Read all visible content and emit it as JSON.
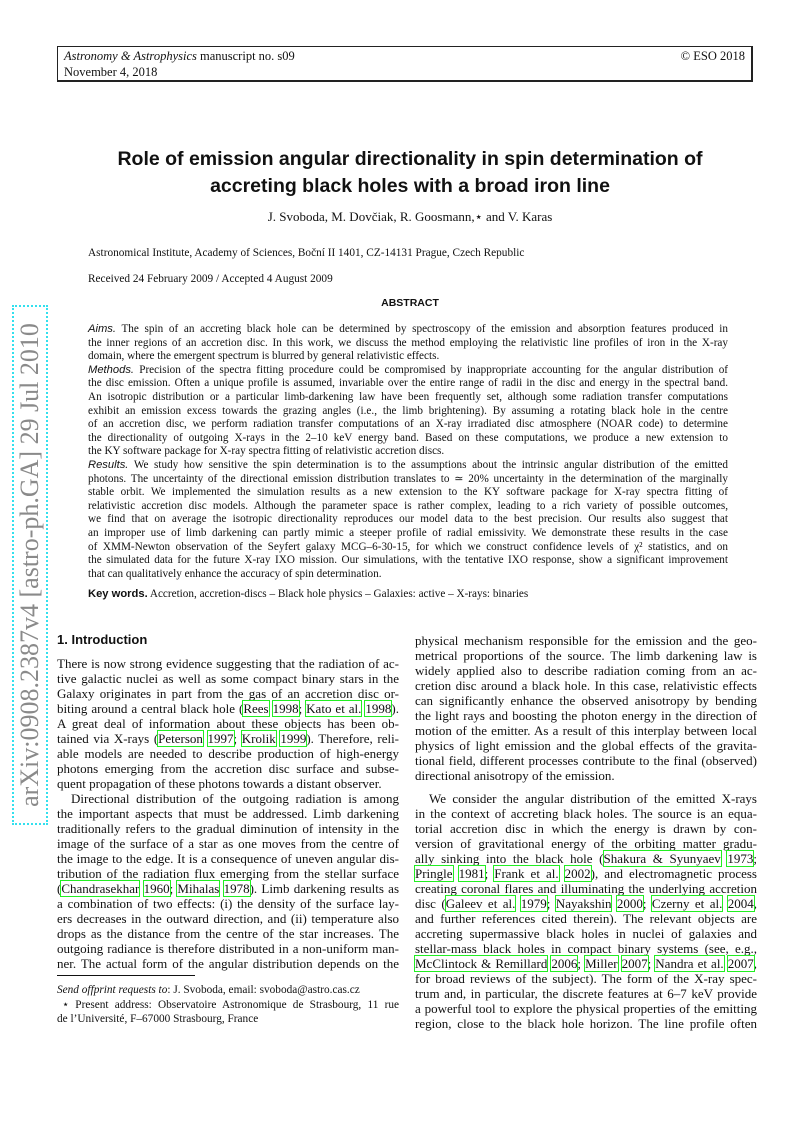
{
  "header": {
    "journal_italic": "Astronomy & Astrophysics",
    "manuscript": " manuscript no. s09",
    "copyright": "© ESO 2018",
    "date": "November 4, 2018"
  },
  "arxiv_stamp": "arXiv:0908.2387v4  [astro-ph.GA]  29 Jul 2010",
  "title_lines": [
    "Role of emission angular directionality in spin determination of",
    "accreting black holes with a broad iron line"
  ],
  "authors": "J. Svoboda, M. Dovčiak, R. Goosmann,⋆ and V. Karas",
  "affiliation": "Astronomical Institute, Academy of Sciences, Boční II 1401, CZ-14131 Prague, Czech Republic",
  "received": "Received 24 February 2009 / Accepted 4 August 2009",
  "abstract": {
    "heading": "ABSTRACT",
    "sections": [
      {
        "label": "Aims.",
        "lines": [
          "The spin of an accreting black hole can be determined by spectroscopy of the emission and absorption features produced in",
          "the inner regions of an accretion disc. In this work, we discuss the method employing the relativistic line profiles of iron in the X-ray",
          "domain, where the emergent spectrum is blurred by general relativistic effects."
        ]
      },
      {
        "label": "Methods.",
        "lines": [
          "Precision of the spectra fitting procedure could be compromised by inappropriate accounting for the angular distribution of",
          "the disc emission. Often a unique profile is assumed, invariable over the entire range of radii in the disc and energy in the spectral band.",
          "An isotropic distribution or a particular limb-darkening law have been frequently set, although some radiation transfer computations",
          "exhibit an emission excess towards the grazing angles (i.e., the limb brightening). By assuming a rotating black hole in the centre",
          "of an accretion disc, we perform radiation transfer computations of an X-ray irradiated disc atmosphere (NOAR code) to determine",
          "the directionality of outgoing X-rays in the 2–10 keV energy band. Based on these computations, we produce a new extension to",
          "the KY software package for X-ray spectra fitting of relativistic accretion discs."
        ]
      },
      {
        "label": "Results.",
        "lines": [
          "We study how sensitive the spin determination is to the assumptions about the intrinsic angular distribution of the emitted",
          "photons. The uncertainty of the directional emission distribution translates to ≃ 20% uncertainty in the determination of the marginally",
          "stable orbit. We implemented the simulation results as a new extension to the KY software package for X-ray spectra fitting of",
          "relativistic accretion disc models. Although the parameter space is rather complex, leading to a rich variety of possible outcomes,",
          "we find that on average the isotropic directionality reproduces our model data to the best precision. Our results also suggest that",
          "an improper use of limb darkening can partly mimic a steeper profile of radial emissivity. We demonstrate these results in the case",
          "of XMM-Newton observation of the Seyfert galaxy MCG–6-30-15, for which we construct confidence levels of χ² statistics, and on",
          "the simulated data for the future X-ray IXO mission. Our simulations, with the tentative IXO response, show a significant improvement",
          "that can qualitatively enhance the accuracy of spin determination."
        ]
      }
    ]
  },
  "keywords": {
    "label": "Key words.",
    "text": " Accretion, accretion-discs – Black hole physics – Galaxies: active – X-rays: binaries"
  },
  "section_heading": "1. Introduction",
  "left_column": [
    {
      "lines": [
        [
          "There is now strong evidence suggesting that the radiation of ac-"
        ],
        [
          "tive galactic nuclei as well as some compact binary stars in the"
        ],
        [
          "Galaxy originates in part from the gas of an accretion disc or-"
        ],
        [
          "biting around a central black hole (",
          {
            "c": "Rees"
          },
          " ",
          {
            "c": "1998"
          },
          "; ",
          {
            "c": "Kato et al."
          },
          " ",
          {
            "c": "1998"
          },
          ")."
        ],
        [
          "A great deal of information about these objects has been ob-"
        ],
        [
          "tained via X-rays (",
          {
            "c": "Peterson"
          },
          " ",
          {
            "c": "1997"
          },
          "; ",
          {
            "c": "Krolik"
          },
          " ",
          {
            "c": "1999"
          },
          "). Therefore, reli-"
        ],
        [
          "able models are needed to describe production of high-energy"
        ],
        [
          "photons emerging from the accretion disc surface and subse-"
        ],
        [
          "quent propagation of these photons towards a distant observer."
        ]
      ]
    },
    {
      "indent": true,
      "lines": [
        [
          "Directional distribution of the outgoing radiation is among"
        ],
        [
          "the important aspects that must be addressed. Limb darkening"
        ],
        [
          "traditionally refers to the gradual diminution of intensity in the"
        ],
        [
          "image of the surface of a star as one moves from the centre of"
        ],
        [
          "the image to the edge. It is a consequence of uneven angular dis-"
        ],
        [
          "tribution of the radiation flux emerging from the stellar surface"
        ],
        [
          "(",
          {
            "c": "Chandrasekhar"
          },
          " ",
          {
            "c": "1960"
          },
          "; ",
          {
            "c": "Mihalas"
          },
          " ",
          {
            "c": "1978"
          },
          "). Limb darkening results as"
        ],
        [
          "a combination of two effects: (i) the density of the surface lay-"
        ],
        [
          "ers decreases in the outward direction, and (ii) temperature also"
        ],
        [
          "drops as the distance from the centre of the star increases. The"
        ],
        [
          "outgoing radiance is therefore distributed in a non-uniform man-"
        ],
        [
          "ner. The actual form of the angular distribution depends on the"
        ]
      ],
      "continues": true
    }
  ],
  "right_column": [
    {
      "lines": [
        [
          "physical mechanism responsible for the emission and the geo-"
        ],
        [
          "metrical proportions of the source. The limb darkening law is"
        ],
        [
          "widely applied also to describe radiation coming from an ac-"
        ],
        [
          "cretion disc around a black hole. In this case, relativistic effects"
        ],
        [
          "can significantly enhance the observed anisotropy by bending"
        ],
        [
          "the light rays and boosting the photon energy in the direction of"
        ],
        [
          "motion of the emitter. As a result of this interplay between local"
        ],
        [
          "physics of light emission and the global effects of the gravita-"
        ],
        [
          "tional field, different processes contribute to the final (observed)"
        ],
        [
          "directional anisotropy of the emission."
        ]
      ]
    }
  ],
  "right_column_2": [
    {
      "indent": true,
      "continues": true,
      "lines": [
        [
          "We consider the angular distribution of the emitted X-rays"
        ],
        [
          "in the context of accreting black holes. The source is an equa-"
        ],
        [
          "torial accretion disc in which the energy is drawn by con-"
        ],
        [
          "version of gravitational energy of the orbiting matter gradu-"
        ],
        [
          "ally sinking into the black hole (",
          {
            "c": "Shakura & Syunyaev"
          },
          " ",
          {
            "c": "1973"
          },
          ";"
        ],
        [
          {
            "c": "Pringle"
          },
          " ",
          {
            "c": "1981"
          },
          "; ",
          {
            "c": "Frank et al."
          },
          " ",
          {
            "c": "2002"
          },
          "), and electromagnetic process"
        ],
        [
          "creating coronal flares and illuminating the underlying accretion"
        ],
        [
          "disc (",
          {
            "c": "Galeev et al."
          },
          " ",
          {
            "c": "1979"
          },
          "; ",
          {
            "c": "Nayakshin"
          },
          " ",
          {
            "c": "2000"
          },
          "; ",
          {
            "c": "Czerny et al."
          },
          " ",
          {
            "c": "2004"
          },
          ","
        ],
        [
          "and further references cited therein). The relevant objects are"
        ],
        [
          "accreting supermassive black holes in nuclei of galaxies and"
        ],
        [
          "stellar-mass black holes in compact binary systems (see, e.g.,"
        ],
        [
          {
            "c": "McClintock & Remillard"
          },
          " ",
          {
            "c": "2006"
          },
          "; ",
          {
            "c": "Miller"
          },
          " ",
          {
            "c": "2007"
          },
          "; ",
          {
            "c": "Nandra et al."
          },
          " ",
          {
            "c": "2007"
          },
          ","
        ],
        [
          "for broad reviews of the subject). The form of the X-ray spec-"
        ],
        [
          "trum and, in particular, the discrete features at 6–7 keV provide"
        ],
        [
          "a powerful tool to explore the physical properties of the emitting"
        ],
        [
          "region, close to the black hole horizon. The line profile often"
        ]
      ]
    }
  ],
  "footnotes": {
    "offprint_label": "Send offprint requests to",
    "offprint_text": ": J. Svoboda, email: svoboda@astro.cas.cz",
    "present_line1": "⋆  Present address: Observatoire Astronomique de Strasbourg, 11 rue",
    "present_line2": "de l’Université, F–67000 Strasbourg, France"
  },
  "colors": {
    "citation_box": "#22ee22",
    "stamp_border": "#33e0ee",
    "stamp_text": "#8a8a8a"
  }
}
